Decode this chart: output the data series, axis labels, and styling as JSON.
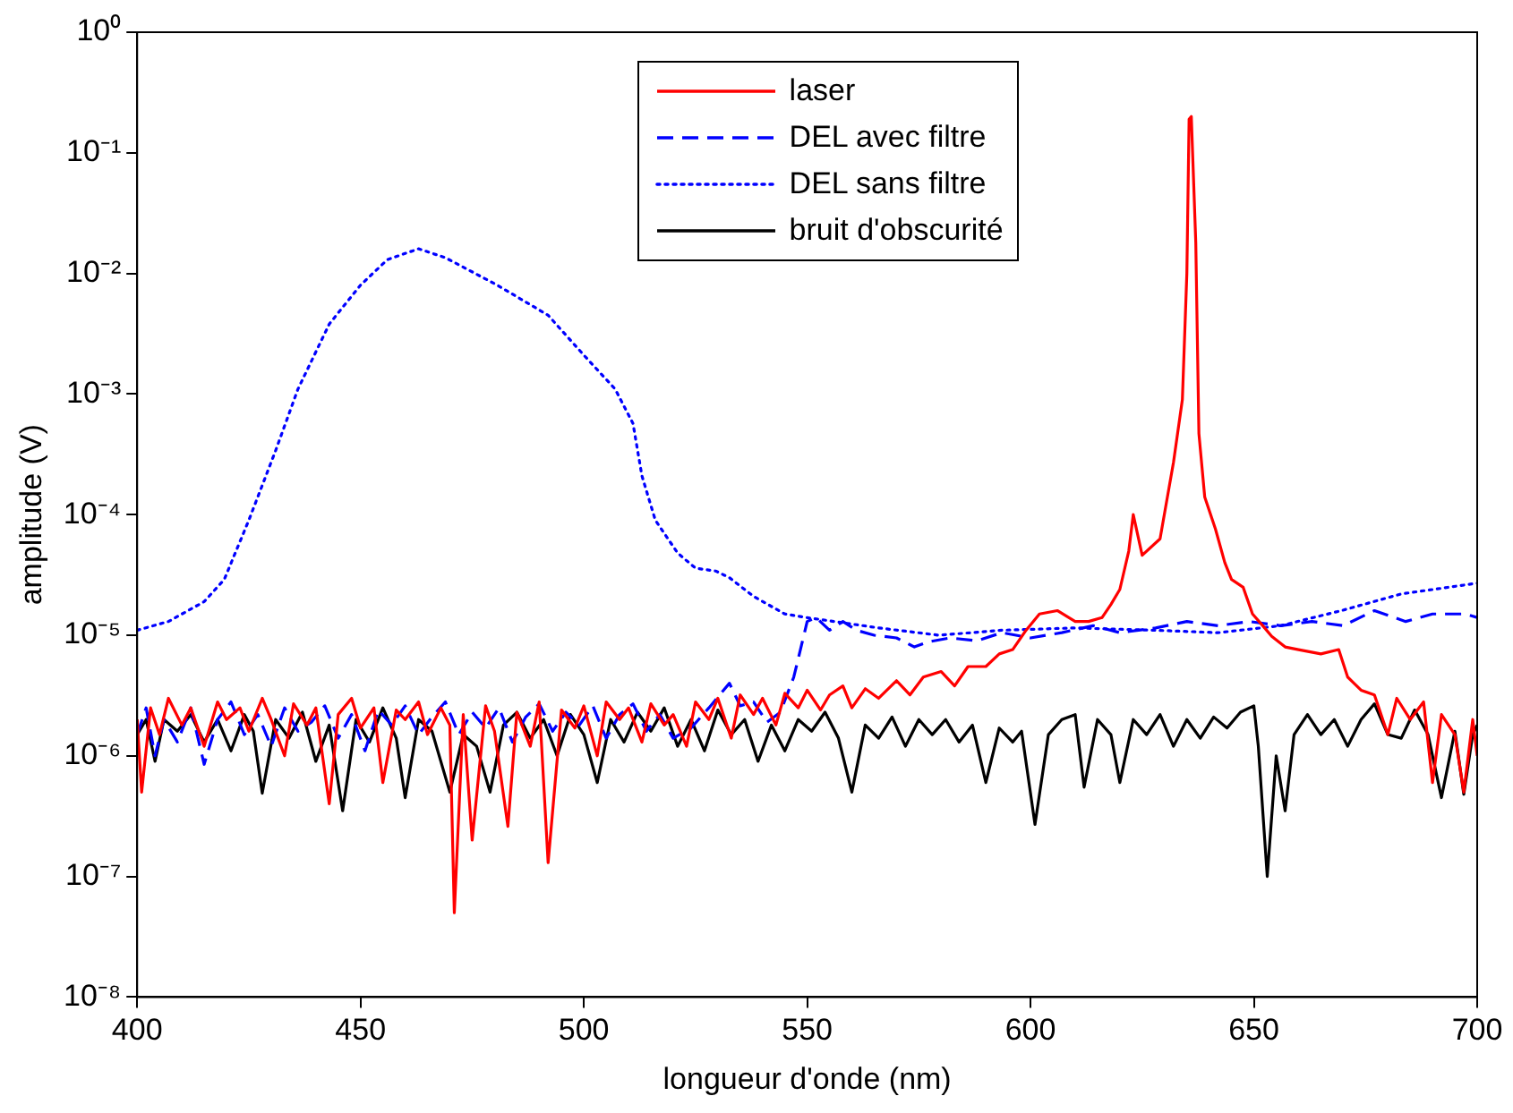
{
  "chart_data": {
    "type": "line",
    "xlabel": "longueur d'onde (nm)",
    "ylabel": "amplitude (V)",
    "log": "y",
    "grid": false,
    "legend": "top",
    "marker": "none",
    "xlim": [
      400,
      700
    ],
    "xticks": [
      400,
      450,
      500,
      550,
      600,
      650,
      700
    ],
    "ylim": [
      1e-08,
      1
    ],
    "yticks": [
      {
        "value": 1e-08,
        "label": "10⁻⁸"
      },
      {
        "value": 1e-07,
        "label": "10⁻⁷"
      },
      {
        "value": 1e-06,
        "label": "10⁻⁶"
      },
      {
        "value": 1e-05,
        "label": "10⁻⁵"
      },
      {
        "value": 0.0001,
        "label": "10⁻⁴"
      },
      {
        "value": 0.001,
        "label": "10⁻³"
      },
      {
        "value": 0.01,
        "label": "10⁻²"
      },
      {
        "value": 0.1,
        "label": "10⁻¹"
      },
      {
        "value": 1,
        "label": "10⁰"
      }
    ],
    "series": [
      {
        "name": "laser",
        "color": "#ff0000",
        "line_style": "solid",
        "x": [
          400,
          401,
          403,
          405,
          407,
          410,
          412,
          415,
          418,
          420,
          423,
          425,
          428,
          430,
          433,
          435,
          438,
          440,
          443,
          445,
          448,
          450,
          453,
          455,
          458,
          460,
          463,
          465,
          468,
          470,
          471,
          473,
          475,
          478,
          480,
          483,
          485,
          488,
          490,
          492,
          495,
          498,
          500,
          503,
          505,
          508,
          510,
          513,
          515,
          518,
          520,
          523,
          525,
          528,
          530,
          533,
          535,
          538,
          540,
          543,
          545,
          548,
          550,
          553,
          555,
          558,
          560,
          563,
          566,
          570,
          573,
          576,
          580,
          583,
          586,
          590,
          593,
          596,
          599,
          602,
          606,
          610,
          613,
          616,
          618,
          620,
          622,
          623,
          625,
          629,
          632,
          634,
          635,
          635.5,
          636,
          637,
          637.7,
          639,
          641.4,
          643.5,
          645,
          647.6,
          649.7,
          652,
          654,
          657,
          660,
          665,
          669,
          671,
          674,
          677,
          680,
          682,
          685,
          688,
          690,
          692,
          695,
          697,
          699,
          700
        ],
        "values": [
          2e-06,
          5e-07,
          2.5e-06,
          1.5e-06,
          3e-06,
          1.8e-06,
          2.5e-06,
          1.2e-06,
          2.8e-06,
          2e-06,
          2.5e-06,
          1.6e-06,
          3e-06,
          2e-06,
          1e-06,
          2.7e-06,
          1.8e-06,
          2.5e-06,
          4e-07,
          2.2e-06,
          3e-06,
          1.7e-06,
          2.5e-06,
          6e-07,
          2.4e-06,
          2e-06,
          2.8e-06,
          1.5e-06,
          2.5e-06,
          1.8e-06,
          5e-08,
          2.2e-06,
          2e-07,
          2.6e-06,
          1.6e-06,
          2.6e-07,
          2.3e-06,
          1.2e-06,
          2.8e-06,
          1.3e-07,
          2.4e-06,
          1.7e-06,
          2.6e-06,
          1e-06,
          2.8e-06,
          2e-06,
          2.5e-06,
          1.3e-06,
          2.7e-06,
          1.8e-06,
          2.2e-06,
          1.2e-06,
          2.8e-06,
          2e-06,
          3e-06,
          1.4e-06,
          3.2e-06,
          2.2e-06,
          3e-06,
          1.8e-06,
          3.3e-06,
          2.5e-06,
          3.5e-06,
          2.4e-06,
          3.2e-06,
          3.8e-06,
          2.5e-06,
          3.6e-06,
          3e-06,
          4.2e-06,
          3.2e-06,
          4.5e-06,
          5e-06,
          3.8e-06,
          5.5e-06,
          5.5e-06,
          7e-06,
          7.6e-06,
          1.1e-05,
          1.5e-05,
          1.6e-05,
          1.3e-05,
          1.3e-05,
          1.4e-05,
          1.8e-05,
          2.4e-05,
          5e-05,
          0.0001,
          4.6e-05,
          6.3e-05,
          0.00027,
          0.0009,
          0.01,
          0.19,
          0.2,
          0.018,
          0.00047,
          0.00014,
          7.6e-05,
          4e-05,
          2.9e-05,
          2.5e-05,
          1.5e-05,
          1.2e-05,
          9.8e-06,
          8e-06,
          7.6e-06,
          7e-06,
          7.6e-06,
          4.5e-06,
          3.5e-06,
          3.2e-06,
          1.5e-06,
          3e-06,
          2e-06,
          2.8e-06,
          6e-07,
          2.2e-06,
          1.5e-06,
          5e-07,
          2e-06,
          1e-06
        ]
      },
      {
        "name": "DEL avec filtre",
        "color": "#0000ff",
        "line_style": "dashed",
        "x": [
          400,
          402,
          404,
          406,
          409,
          412,
          415,
          418,
          421,
          424,
          427,
          430,
          433,
          436,
          439,
          442,
          445,
          448,
          451,
          454,
          457,
          460,
          463,
          466,
          469,
          472,
          475,
          478,
          481,
          484,
          487,
          490,
          493,
          496,
          499,
          502,
          505,
          508,
          511,
          514,
          517,
          520,
          524,
          528,
          532.6,
          535,
          538,
          541,
          544,
          547,
          550,
          552,
          555,
          558,
          561,
          565,
          570,
          574,
          577,
          582,
          588,
          593.6,
          600,
          607,
          614,
          620,
          628,
          635,
          642,
          649,
          656,
          663,
          670,
          677,
          684,
          690,
          697.5,
          700
        ],
        "values": [
          1.5e-06,
          2.5e-06,
          1e-06,
          2e-06,
          1.3e-06,
          2.5e-06,
          8.5e-07,
          2e-06,
          2.8e-06,
          1.5e-06,
          2.2e-06,
          1.2e-06,
          2.5e-06,
          1.6e-06,
          1.9e-06,
          2.6e-06,
          1.4e-06,
          2.2e-06,
          1.1e-06,
          2.4e-06,
          1.8e-06,
          2.6e-06,
          1.5e-06,
          2.1e-06,
          2.8e-06,
          1.5e-06,
          2.3e-06,
          1.7e-06,
          2.5e-06,
          1.3e-06,
          2.1e-06,
          2.7e-06,
          1.6e-06,
          2.3e-06,
          1.8e-06,
          2.6e-06,
          1.4e-06,
          2.2e-06,
          2.7e-06,
          1.6e-06,
          2.2e-06,
          1.4e-06,
          1.7e-06,
          2.5e-06,
          4e-06,
          2.6e-06,
          2.8e-06,
          1.9e-06,
          2.3e-06,
          4.5e-06,
          1.3e-05,
          1.4e-05,
          1.1e-05,
          1.3e-05,
          1.1e-05,
          1e-05,
          9.5e-06,
          8e-06,
          8.8e-06,
          9.5e-06,
          9e-06,
          1.05e-05,
          9.5e-06,
          1.05e-05,
          1.2e-05,
          1.05e-05,
          1.15e-05,
          1.3e-05,
          1.2e-05,
          1.3e-05,
          1.2e-05,
          1.3e-05,
          1.2e-05,
          1.6e-05,
          1.3e-05,
          1.5e-05,
          1.5e-05,
          1.4e-05
        ]
      },
      {
        "name": "DEL sans filtre",
        "color": "#0000ff",
        "line_style": "dotted",
        "x": [
          400,
          407,
          415,
          419.5,
          425,
          431,
          436,
          443,
          450,
          456,
          463,
          469,
          480.6,
          492,
          500,
          507,
          511,
          513,
          516,
          521,
          525,
          529.6,
          532.6,
          538,
          545,
          550,
          566,
          579.5,
          593.6,
          610,
          628,
          642,
          656,
          669.6,
          683,
          700
        ],
        "values": [
          1.1e-05,
          1.3e-05,
          1.9e-05,
          2.9e-05,
          9e-05,
          0.00034,
          0.0011,
          0.0038,
          0.008,
          0.013,
          0.016,
          0.0135,
          0.008,
          0.0045,
          0.0021,
          0.0011,
          0.00057,
          0.00021,
          9e-05,
          4.8e-05,
          3.6e-05,
          3.4e-05,
          3e-05,
          2.1e-05,
          1.5e-05,
          1.4e-05,
          1.15e-05,
          1e-05,
          1.1e-05,
          1.15e-05,
          1.1e-05,
          1.05e-05,
          1.2e-05,
          1.6e-05,
          2.2e-05,
          2.7e-05
        ]
      },
      {
        "name": "bruit d'obscurité",
        "color": "#000000",
        "line_style": "solid",
        "x": [
          400,
          402,
          404,
          406,
          409,
          412,
          415,
          418,
          421,
          424,
          426,
          428,
          431,
          434,
          437,
          440,
          443,
          446,
          449,
          452,
          455,
          458,
          460,
          463,
          466,
          470,
          473,
          476,
          479,
          482,
          485,
          488,
          491,
          494,
          497,
          500,
          503,
          506,
          509,
          512,
          515,
          518,
          521,
          524,
          527,
          530,
          533,
          536,
          539,
          542,
          545,
          548,
          551,
          554,
          557,
          560,
          563,
          566,
          569,
          572,
          575,
          578,
          581,
          584,
          587,
          590,
          593,
          596,
          598,
          601,
          604,
          607,
          610,
          612,
          615,
          618,
          620,
          623,
          626,
          629,
          632,
          635,
          638,
          641,
          644,
          647,
          650,
          651,
          653,
          655,
          657,
          659,
          662,
          665,
          668,
          671,
          674,
          677,
          680,
          683,
          686,
          689,
          692,
          695,
          697,
          699,
          700
        ],
        "values": [
          1.5e-06,
          2e-06,
          9e-07,
          2e-06,
          1.6e-06,
          2.2e-06,
          1.3e-06,
          2e-06,
          1.1e-06,
          2.2e-06,
          1.6e-06,
          4.9e-07,
          2e-06,
          1.4e-06,
          2.3e-06,
          9e-07,
          1.8e-06,
          3.5e-07,
          2e-06,
          1.3e-06,
          2.5e-06,
          1.4e-06,
          4.5e-07,
          2e-06,
          1.6e-06,
          5e-07,
          1.5e-06,
          1.2e-06,
          5e-07,
          1.8e-06,
          2.3e-06,
          1.4e-06,
          2e-06,
          1e-06,
          2.2e-06,
          1.5e-06,
          6e-07,
          2e-06,
          1.3e-06,
          2.3e-06,
          1.6e-06,
          2.5e-06,
          1.2e-06,
          2e-06,
          1.1e-06,
          2.4e-06,
          1.5e-06,
          2e-06,
          9e-07,
          1.8e-06,
          1.1e-06,
          2e-06,
          1.6e-06,
          2.3e-06,
          1.4e-06,
          5e-07,
          1.8e-06,
          1.4e-06,
          2.1e-06,
          1.2e-06,
          2e-06,
          1.5e-06,
          2e-06,
          1.3e-06,
          1.8e-06,
          6e-07,
          1.7e-06,
          1.3e-06,
          1.6e-06,
          2.7e-07,
          1.5e-06,
          2e-06,
          2.2e-06,
          5.5e-07,
          2e-06,
          1.5e-06,
          6e-07,
          2e-06,
          1.5e-06,
          2.2e-06,
          1.2e-06,
          2e-06,
          1.4e-06,
          2.1e-06,
          1.7e-06,
          2.3e-06,
          2.6e-06,
          1.2e-06,
          1e-07,
          1e-06,
          3.5e-07,
          1.5e-06,
          2.2e-06,
          1.5e-06,
          2e-06,
          1.2e-06,
          2e-06,
          2.7e-06,
          1.5e-06,
          1.4e-06,
          2.4e-06,
          1.5e-06,
          4.5e-07,
          1.6e-06,
          4.8e-07,
          1.5e-06,
          1.8e-06
        ]
      }
    ]
  }
}
